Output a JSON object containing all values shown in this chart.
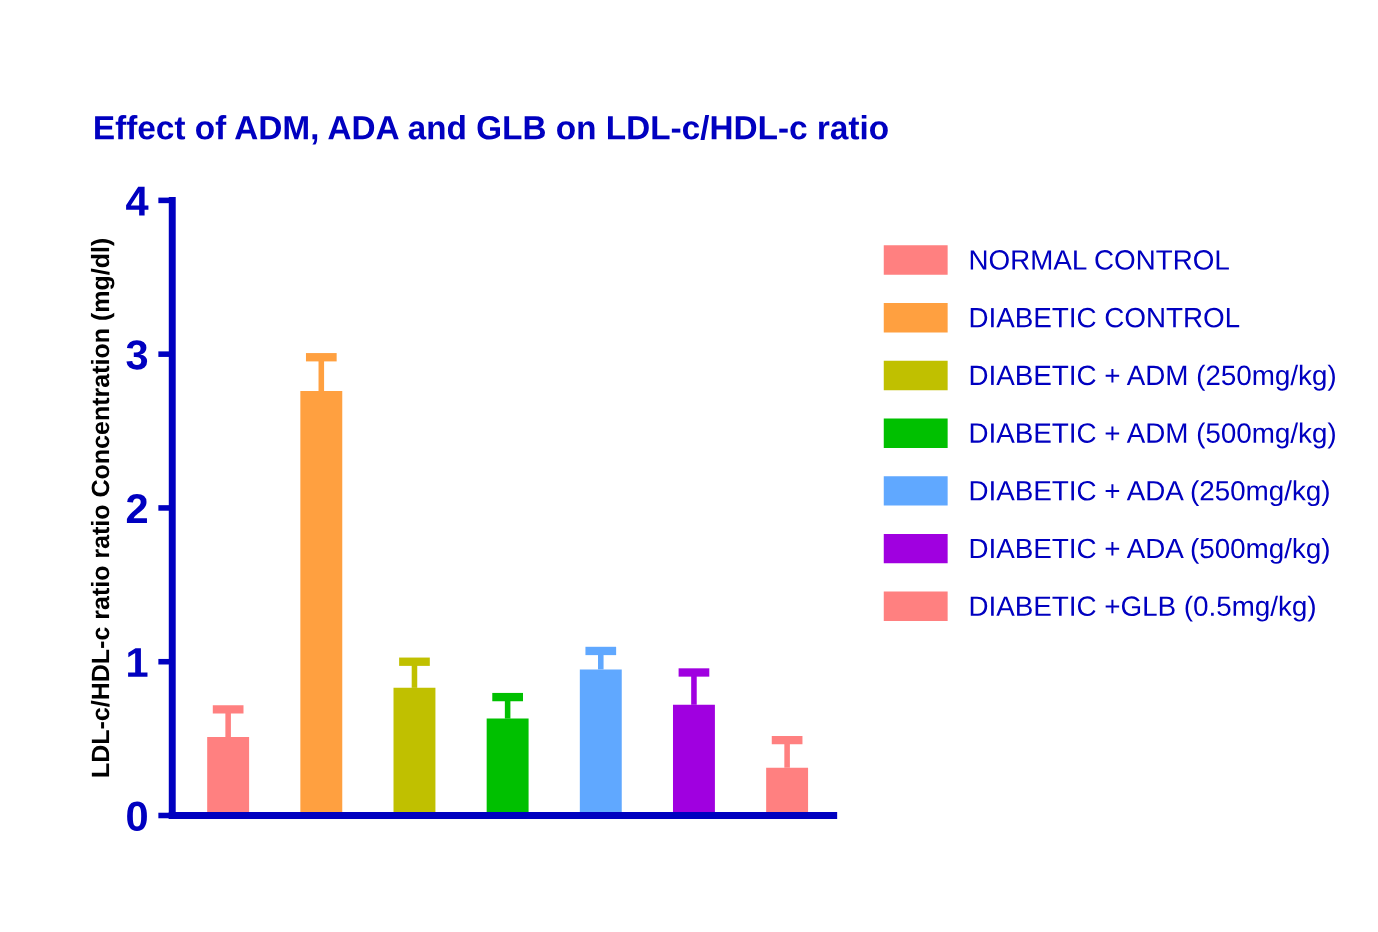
{
  "chart_data": {
    "type": "bar",
    "title": "Effect of ADM, ADA and GLB on LDL-c/HDL-c ratio",
    "ylabel": "LDL-c/HDL-c ratio ratio Concentration (mg/dl)",
    "categories": [
      null,
      null,
      null,
      null,
      null,
      null,
      null
    ],
    "series": [
      {
        "name": "NORMAL CONTROL",
        "color": "#ff8080",
        "values": [
          0.51,
          null,
          null,
          null,
          null,
          null,
          null
        ],
        "errors": [
          [
            0.51,
            0.69
          ],
          null,
          null,
          null,
          null,
          null,
          null
        ]
      },
      {
        "name": "DIABETIC CONTROL",
        "color": "#ffa040",
        "values": [
          null,
          2.76,
          null,
          null,
          null,
          null,
          null
        ],
        "errors": [
          null,
          [
            2.76,
            2.98
          ],
          null,
          null,
          null,
          null,
          null
        ]
      },
      {
        "name": "DIABETIC + ADM (250mg/kg)",
        "color": "#c0c000",
        "values": [
          null,
          null,
          0.83,
          null,
          null,
          null,
          null
        ],
        "errors": [
          null,
          null,
          [
            0.83,
            1.0
          ],
          null,
          null,
          null,
          null
        ]
      },
      {
        "name": "DIABETIC + ADM (500mg/kg)",
        "color": "#00c000",
        "values": [
          null,
          null,
          null,
          0.63,
          null,
          null,
          null
        ],
        "errors": [
          null,
          null,
          null,
          [
            0.63,
            0.77
          ],
          null,
          null,
          null
        ]
      },
      {
        "name": "DIABETIC + ADA (250mg/kg)",
        "color": "#60a8ff",
        "values": [
          null,
          null,
          null,
          null,
          0.95,
          null,
          null
        ],
        "errors": [
          null,
          null,
          null,
          null,
          [
            0.95,
            1.07
          ],
          null,
          null
        ]
      },
      {
        "name": "DIABETIC + ADA (500mg/kg)",
        "color": "#a000e0",
        "values": [
          null,
          null,
          null,
          null,
          null,
          0.72,
          null
        ],
        "errors": [
          null,
          null,
          null,
          null,
          null,
          [
            0.72,
            0.93
          ],
          null
        ]
      },
      {
        "name": "DIABETIC +GLB (0.5mg/kg)",
        "color": "#ff8080",
        "values": [
          null,
          null,
          null,
          null,
          null,
          null,
          0.31
        ],
        "errors": [
          null,
          null,
          null,
          null,
          null,
          null,
          [
            0.31,
            0.49
          ]
        ]
      }
    ],
    "ylim": [
      0,
      4
    ],
    "yticks": [
      0,
      1,
      2,
      3,
      4
    ],
    "grid": false,
    "legend": "right",
    "tick_labels": "y"
  }
}
